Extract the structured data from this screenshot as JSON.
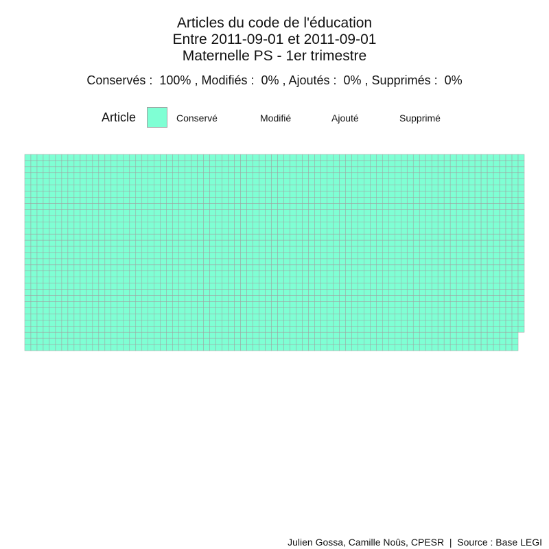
{
  "title_lines": [
    "Articles du code de l'éducation",
    "Entre 2011-09-01 et 2011-09-01",
    "Maternelle PS - 1er trimestre"
  ],
  "summary": "Conservés :  100% , Modifiés :  0% , Ajoutés :  0% , Supprimés :  0%",
  "caption": "Julien Gossa, Camille Noûs, CPESR  |  Source : Base LEGI",
  "chart_data": {
    "type": "waffle",
    "legend_title": "Article",
    "legend_placement": "top",
    "categories": [
      "Conservé",
      "Modifié",
      "Ajouté",
      "Supprimé"
    ],
    "colors": [
      "#7fffd4",
      "#ffa07a",
      "#90ee90",
      "#ff6347"
    ],
    "percentages": [
      100,
      0,
      0,
      0
    ],
    "columns": 81,
    "rows": 32,
    "values": [
      2589,
      0,
      0,
      0
    ],
    "tile_border_color": "#a0a0a0"
  }
}
